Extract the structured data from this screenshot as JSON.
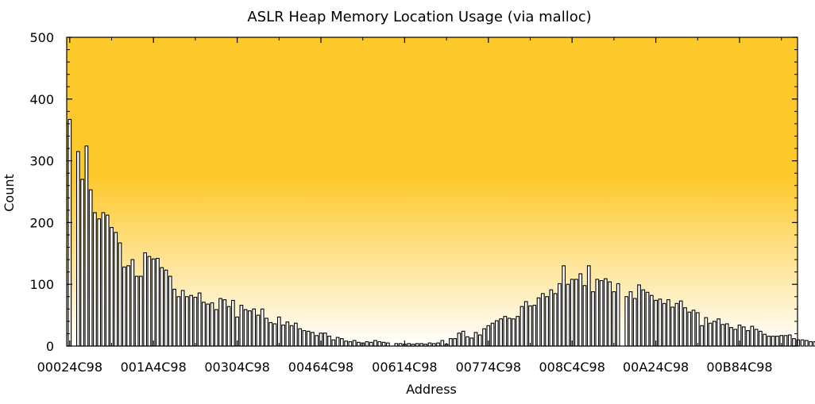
{
  "chart_data": {
    "type": "bar",
    "title": "ASLR Heap Memory Location Usage (via malloc)",
    "xlabel": "Address",
    "ylabel": "Count",
    "ylim": [
      0,
      500
    ],
    "yticks": [
      0,
      100,
      200,
      300,
      400,
      500
    ],
    "grid": false,
    "background_gradient": [
      "#fdc82a",
      "#fdc82a",
      "#ffffff"
    ],
    "bar_fill": "#ffffff",
    "bar_stroke": "#000000",
    "xtick_labels": [
      "00024C98",
      "001A4C98",
      "00304C98",
      "00464C98",
      "00614C98",
      "00774C98",
      "008C4C98",
      "00A24C98",
      "00B84C98"
    ],
    "xtick_bar_index": [
      0,
      20,
      40,
      60,
      80,
      100,
      120,
      140,
      160
    ],
    "series": [
      {
        "values": [
          367,
          0,
          315,
          270,
          324,
          253,
          216,
          206,
          216,
          212,
          192,
          184,
          167,
          128,
          130,
          140,
          113,
          113,
          151,
          145,
          141,
          142,
          127,
          123,
          113,
          92,
          80,
          90,
          80,
          82,
          79,
          86,
          71,
          68,
          70,
          59,
          77,
          75,
          64,
          74,
          47,
          66,
          59,
          57,
          60,
          50,
          60,
          45,
          38,
          36,
          47,
          34,
          39,
          33,
          37,
          28,
          25,
          24,
          22,
          17,
          21,
          21,
          16,
          10,
          14,
          12,
          8,
          7,
          9,
          6,
          5,
          7,
          6,
          9,
          7,
          6,
          5,
          0,
          4,
          4,
          3,
          4,
          3,
          4,
          4,
          3,
          5,
          4,
          5,
          9,
          3,
          12,
          12,
          21,
          24,
          15,
          13,
          22,
          18,
          28,
          33,
          37,
          41,
          44,
          48,
          45,
          44,
          48,
          64,
          72,
          65,
          66,
          78,
          85,
          80,
          91,
          85,
          101,
          130,
          100,
          108,
          108,
          117,
          98,
          130,
          88,
          108,
          106,
          109,
          104,
          88,
          101,
          0,
          80,
          88,
          77,
          99,
          91,
          87,
          82,
          74,
          76,
          69,
          75,
          63,
          69,
          73,
          62,
          55,
          58,
          54,
          33,
          46,
          37,
          40,
          44,
          35,
          36,
          30,
          27,
          34,
          31,
          25,
          32,
          27,
          24,
          19,
          16,
          16,
          16,
          17,
          17,
          18,
          12,
          10,
          10,
          9,
          7,
          7,
          6,
          6,
          6,
          6,
          5,
          5,
          6,
          5,
          4,
          3,
          10,
          4,
          4,
          2
        ]
      }
    ]
  }
}
